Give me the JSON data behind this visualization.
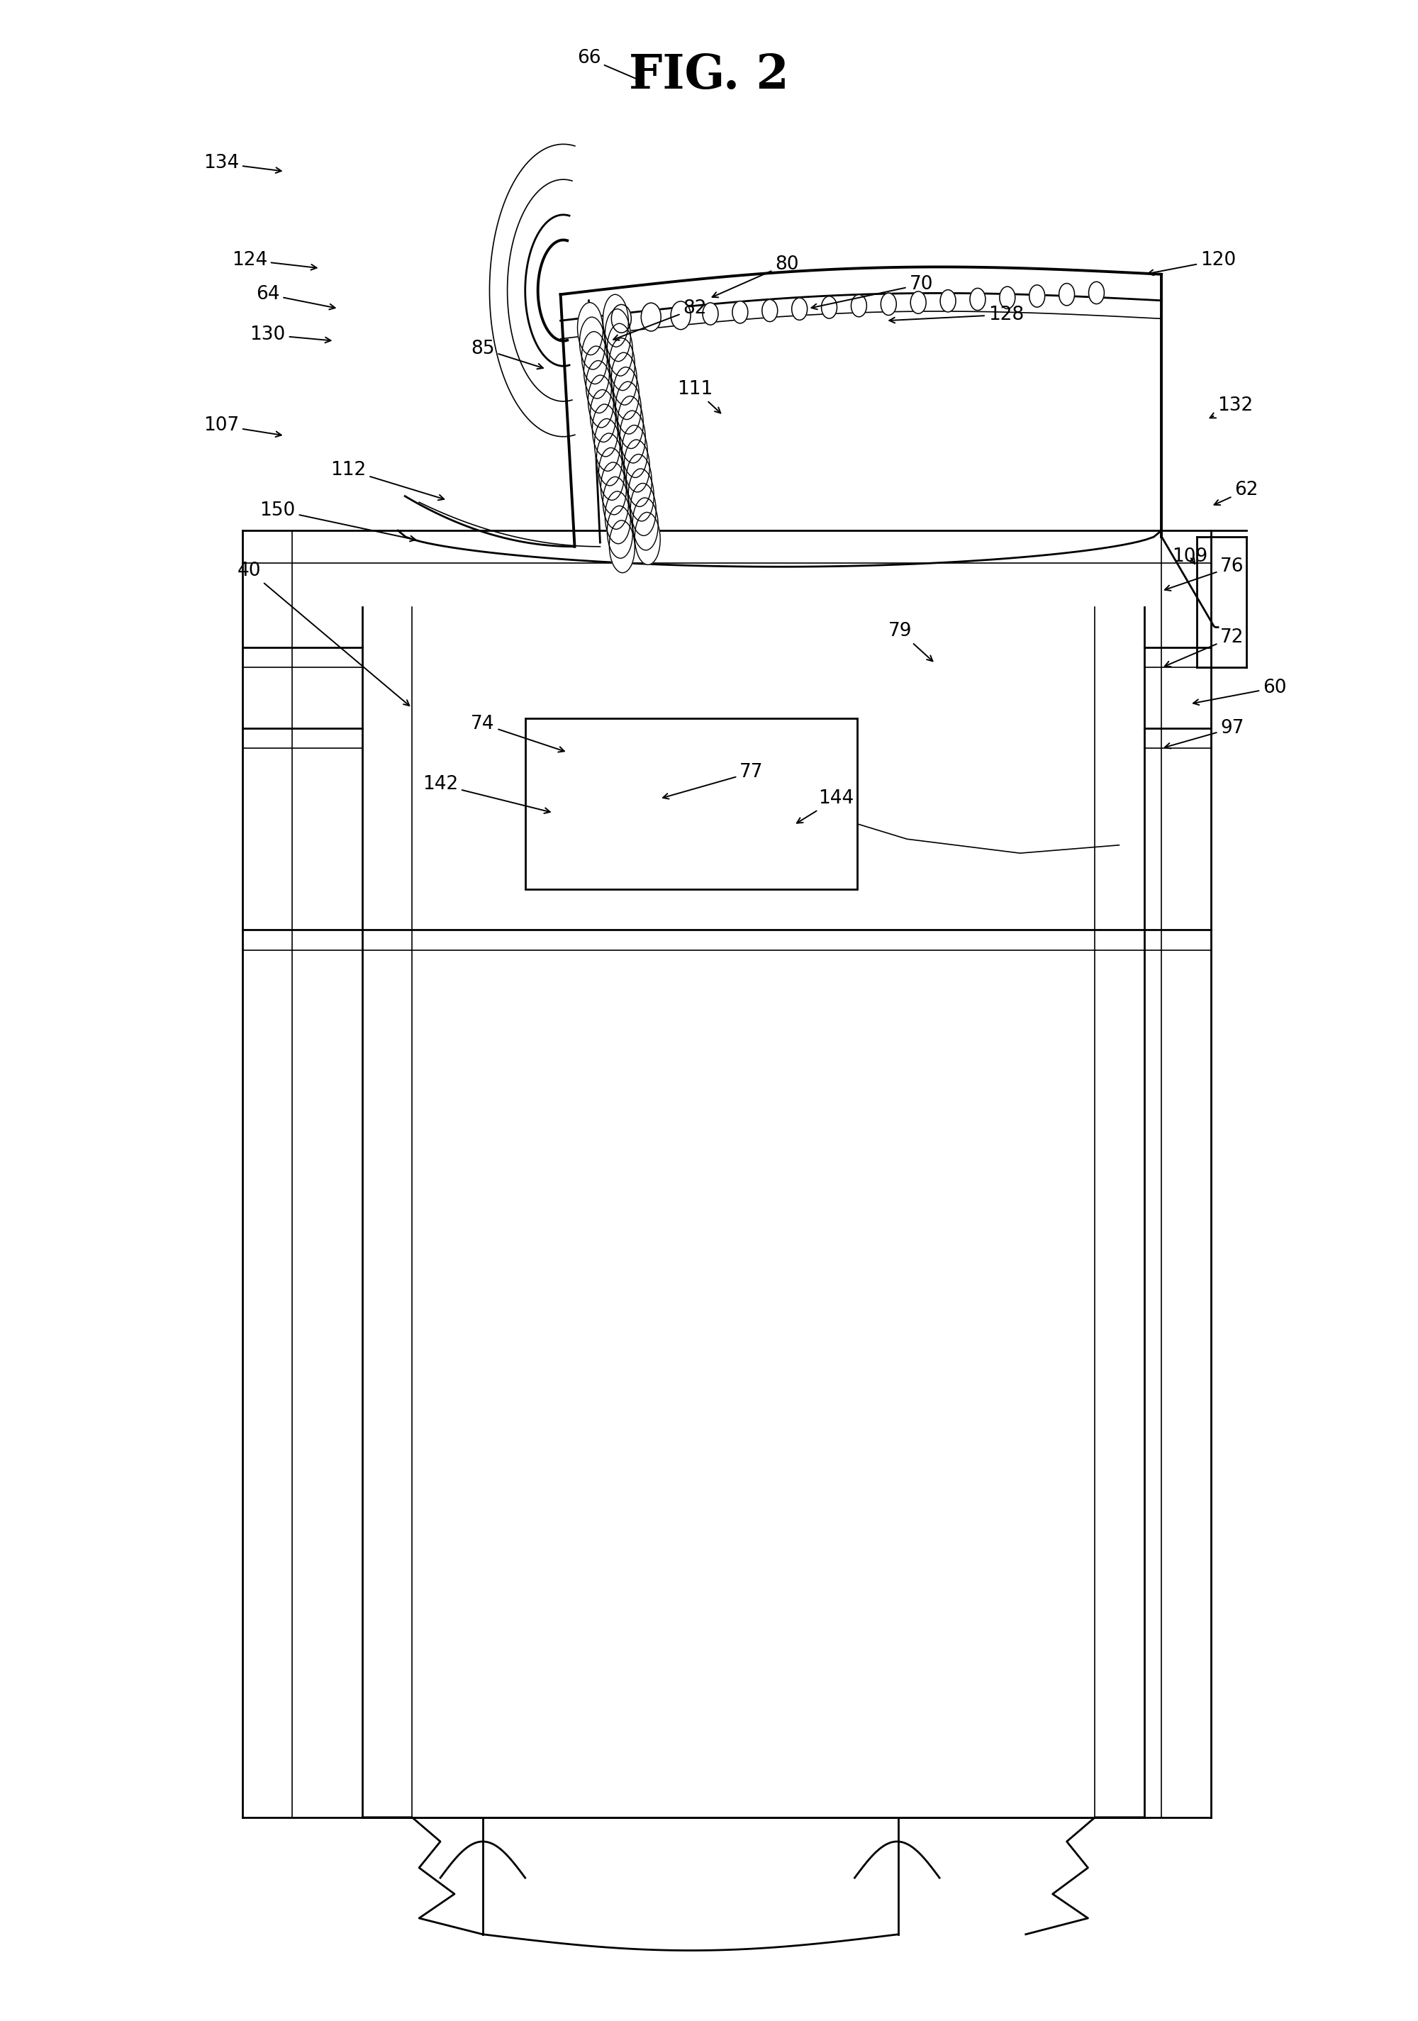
{
  "title": "FIG. 2",
  "background_color": "#ffffff",
  "line_color": "#000000",
  "fig_width": 20.0,
  "fig_height": 28.5,
  "labels": {
    "80": [
      0.555,
      0.87,
      0.5,
      0.853
    ],
    "82": [
      0.49,
      0.848,
      0.43,
      0.832
    ],
    "85": [
      0.34,
      0.828,
      0.385,
      0.818
    ],
    "70": [
      0.65,
      0.86,
      0.57,
      0.848
    ],
    "76": [
      0.87,
      0.72,
      0.82,
      0.708
    ],
    "72": [
      0.87,
      0.685,
      0.82,
      0.67
    ],
    "97": [
      0.87,
      0.64,
      0.82,
      0.63
    ],
    "60": [
      0.9,
      0.66,
      0.84,
      0.652
    ],
    "144": [
      0.59,
      0.605,
      0.56,
      0.592
    ],
    "74": [
      0.34,
      0.642,
      0.4,
      0.628
    ],
    "142": [
      0.31,
      0.612,
      0.39,
      0.598
    ],
    "77": [
      0.53,
      0.618,
      0.465,
      0.605
    ],
    "79": [
      0.635,
      0.688,
      0.66,
      0.672
    ],
    "40": [
      0.175,
      0.718,
      0.29,
      0.65
    ],
    "150": [
      0.195,
      0.748,
      0.295,
      0.733
    ],
    "112": [
      0.245,
      0.768,
      0.315,
      0.753
    ],
    "107": [
      0.155,
      0.79,
      0.2,
      0.785
    ],
    "109": [
      0.84,
      0.725,
      0.845,
      0.72
    ],
    "111": [
      0.49,
      0.808,
      0.51,
      0.795
    ],
    "62": [
      0.88,
      0.758,
      0.855,
      0.75
    ],
    "130": [
      0.188,
      0.835,
      0.235,
      0.832
    ],
    "64": [
      0.188,
      0.855,
      0.238,
      0.848
    ],
    "124": [
      0.175,
      0.872,
      0.225,
      0.868
    ],
    "120": [
      0.86,
      0.872,
      0.808,
      0.865
    ],
    "128": [
      0.71,
      0.845,
      0.625,
      0.842
    ],
    "132": [
      0.872,
      0.8,
      0.852,
      0.793
    ],
    "134": [
      0.155,
      0.92,
      0.2,
      0.916
    ],
    "66": [
      0.415,
      0.972,
      0.455,
      0.96
    ]
  }
}
